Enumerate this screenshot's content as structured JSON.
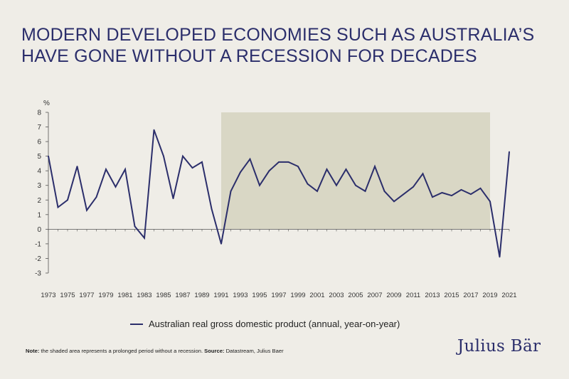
{
  "title": {
    "line1": "MODERN DEVELOPED ECONOMIES SUCH AS AUSTRALIA’S",
    "line2": "HAVE GONE WITHOUT A RECESSION FOR DECADES"
  },
  "chart_data": {
    "type": "line",
    "title": "MODERN DEVELOPED ECONOMIES SUCH AS AUSTRALIA’S HAVE GONE WITHOUT A RECESSION FOR DECADES",
    "xlabel": "",
    "ylabel": "%",
    "ylim": [
      -3,
      8
    ],
    "yticks": [
      8,
      7,
      6,
      5,
      4,
      3,
      2,
      1,
      0,
      -1,
      -2,
      -3
    ],
    "xlim": [
      1973,
      2021
    ],
    "xtick_labels": [
      "1973",
      "1975",
      "1977",
      "1979",
      "1981",
      "1983",
      "1985",
      "1987",
      "1989",
      "1991",
      "1993",
      "1995",
      "1997",
      "1999",
      "2001",
      "2003",
      "2005",
      "2007",
      "2009",
      "2011",
      "2013",
      "2015",
      "2017",
      "2019",
      "2021"
    ],
    "grid": false,
    "legend_position": "bottom",
    "shaded_region": {
      "x_start": 1991,
      "x_end": 2019
    },
    "colors": {
      "line": "#2b2e6b",
      "shade": "#d9d7c5",
      "background": "#efede7",
      "axis": "#555555"
    },
    "series": [
      {
        "name": "Australian real gross domestic product (annual, year-on-year)",
        "x": [
          1973,
          1974,
          1975,
          1976,
          1977,
          1978,
          1979,
          1980,
          1981,
          1982,
          1983,
          1984,
          1985,
          1986,
          1987,
          1988,
          1989,
          1990,
          1991,
          1992,
          1993,
          1994,
          1995,
          1996,
          1997,
          1998,
          1999,
          2000,
          2001,
          2002,
          2003,
          2004,
          2005,
          2006,
          2007,
          2008,
          2009,
          2010,
          2011,
          2012,
          2013,
          2014,
          2015,
          2016,
          2017,
          2018,
          2019,
          2020,
          2021
        ],
        "values": [
          5.0,
          1.5,
          2.0,
          4.3,
          1.3,
          2.2,
          4.1,
          2.9,
          4.1,
          0.2,
          -0.6,
          6.8,
          5.0,
          2.1,
          5.0,
          4.2,
          4.6,
          1.4,
          -1.0,
          2.6,
          3.9,
          4.8,
          3.0,
          4.0,
          4.6,
          4.6,
          4.3,
          3.1,
          2.6,
          4.1,
          3.0,
          4.1,
          3.0,
          2.6,
          4.3,
          2.6,
          1.9,
          2.4,
          2.9,
          3.8,
          2.2,
          2.5,
          2.3,
          2.7,
          2.4,
          2.8,
          1.9,
          -1.9,
          5.3
        ]
      }
    ]
  },
  "legend": {
    "label": "Australian real gross domestic product (annual, year-on-year)"
  },
  "footer": {
    "note_label": "Note:",
    "note_text": " the shaded area represents a prolonged period without a recession. ",
    "source_label": "Source:",
    "source_text": " Datastream, Julius Baer"
  },
  "brand": {
    "name": "Julius Bär"
  }
}
